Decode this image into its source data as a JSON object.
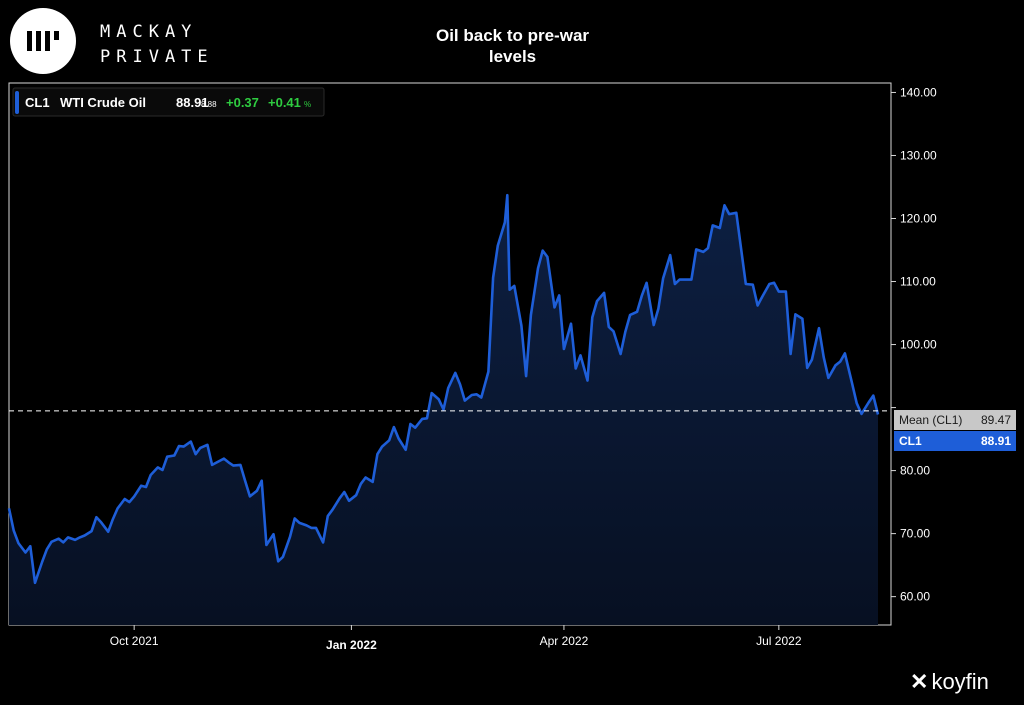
{
  "brand": {
    "line1": "MACKAY",
    "line2": "PRIVATE",
    "watermark": "koyfin"
  },
  "colors": {
    "background": "#000000",
    "line": "#1e5ed8",
    "fill": "#0b1a36",
    "positive": "#2ecc40",
    "mean_label_bg": "#c8c8c8"
  },
  "legend": {
    "ticker": "CL1",
    "name": "WTI Crude Oil",
    "price": "88.91",
    "sub_price": "8.88",
    "change": "+0.37",
    "change_pct": "+0.41",
    "pct_sign": "%"
  },
  "mean_label": {
    "name": "Mean (CL1)",
    "value": "89.47"
  },
  "last_label": {
    "name": "CL1",
    "value": "88.91"
  },
  "chart_data": {
    "type": "area",
    "title": "Oil back to pre-war levels",
    "title_lines": [
      "Oil back to pre-war",
      "levels"
    ],
    "xlabel": "",
    "ylabel": "",
    "ylim": [
      55.5,
      141.5
    ],
    "y_ticks": [
      60,
      70,
      80,
      90,
      100,
      110,
      120,
      130,
      140
    ],
    "y_tick_labels": [
      "60.00",
      "70.00",
      "80.00",
      "",
      "100.00",
      "110.00",
      "120.00",
      "130.00",
      "140.00"
    ],
    "x_range": [
      "2021-08-09",
      "2022-08-12"
    ],
    "x_ticks": [
      {
        "label": "Oct 2021",
        "date": "2021-10-01",
        "bold": false
      },
      {
        "label": "Jan 2022",
        "date": "2022-01-01",
        "bold": true
      },
      {
        "label": "Apr 2022",
        "date": "2022-04-01",
        "bold": false
      },
      {
        "label": "Jul 2022",
        "date": "2022-07-01",
        "bold": false
      }
    ],
    "grid": false,
    "legend_position": "top-left",
    "mean": 89.47,
    "series": [
      {
        "name": "WTI Crude Oil",
        "points": [
          [
            "2021-08-09",
            74.0
          ],
          [
            "2021-08-11",
            70.5
          ],
          [
            "2021-08-13",
            68.5
          ],
          [
            "2021-08-16",
            67.0
          ],
          [
            "2021-08-18",
            68.0
          ],
          [
            "2021-08-20",
            62.2
          ],
          [
            "2021-08-23",
            65.5
          ],
          [
            "2021-08-25",
            67.5
          ],
          [
            "2021-08-27",
            68.7
          ],
          [
            "2021-08-30",
            69.2
          ],
          [
            "2021-09-01",
            68.6
          ],
          [
            "2021-09-03",
            69.4
          ],
          [
            "2021-09-06",
            69.0
          ],
          [
            "2021-09-08",
            69.4
          ],
          [
            "2021-09-10",
            69.7
          ],
          [
            "2021-09-13",
            70.4
          ],
          [
            "2021-09-15",
            72.6
          ],
          [
            "2021-09-17",
            71.8
          ],
          [
            "2021-09-20",
            70.3
          ],
          [
            "2021-09-22",
            72.3
          ],
          [
            "2021-09-24",
            74.0
          ],
          [
            "2021-09-27",
            75.5
          ],
          [
            "2021-09-29",
            75.0
          ],
          [
            "2021-10-01",
            75.9
          ],
          [
            "2021-10-04",
            77.6
          ],
          [
            "2021-10-06",
            77.4
          ],
          [
            "2021-10-08",
            79.3
          ],
          [
            "2021-10-11",
            80.5
          ],
          [
            "2021-10-13",
            80.1
          ],
          [
            "2021-10-15",
            82.2
          ],
          [
            "2021-10-18",
            82.4
          ],
          [
            "2021-10-20",
            83.9
          ],
          [
            "2021-10-22",
            83.8
          ],
          [
            "2021-10-25",
            84.6
          ],
          [
            "2021-10-27",
            82.6
          ],
          [
            "2021-10-29",
            83.6
          ],
          [
            "2021-11-01",
            84.1
          ],
          [
            "2021-11-03",
            80.9
          ],
          [
            "2021-11-05",
            81.3
          ],
          [
            "2021-11-08",
            81.9
          ],
          [
            "2021-11-10",
            81.3
          ],
          [
            "2021-11-12",
            80.8
          ],
          [
            "2021-11-15",
            80.9
          ],
          [
            "2021-11-17",
            78.4
          ],
          [
            "2021-11-19",
            75.9
          ],
          [
            "2021-11-22",
            76.8
          ],
          [
            "2021-11-24",
            78.4
          ],
          [
            "2021-11-26",
            68.2
          ],
          [
            "2021-11-29",
            69.9
          ],
          [
            "2021-12-01",
            65.6
          ],
          [
            "2021-12-03",
            66.3
          ],
          [
            "2021-12-06",
            69.5
          ],
          [
            "2021-12-08",
            72.4
          ],
          [
            "2021-12-10",
            71.7
          ],
          [
            "2021-12-13",
            71.3
          ],
          [
            "2021-12-15",
            70.9
          ],
          [
            "2021-12-17",
            70.9
          ],
          [
            "2021-12-20",
            68.6
          ],
          [
            "2021-12-22",
            72.8
          ],
          [
            "2021-12-24",
            73.8
          ],
          [
            "2021-12-27",
            75.6
          ],
          [
            "2021-12-29",
            76.6
          ],
          [
            "2021-12-31",
            75.2
          ],
          [
            "2022-01-03",
            76.1
          ],
          [
            "2022-01-05",
            77.9
          ],
          [
            "2022-01-07",
            78.9
          ],
          [
            "2022-01-10",
            78.2
          ],
          [
            "2022-01-12",
            82.6
          ],
          [
            "2022-01-14",
            83.8
          ],
          [
            "2022-01-17",
            84.8
          ],
          [
            "2022-01-19",
            86.9
          ],
          [
            "2022-01-21",
            85.1
          ],
          [
            "2022-01-24",
            83.3
          ],
          [
            "2022-01-26",
            87.4
          ],
          [
            "2022-01-28",
            86.8
          ],
          [
            "2022-01-31",
            88.2
          ],
          [
            "2022-02-02",
            88.3
          ],
          [
            "2022-02-04",
            92.3
          ],
          [
            "2022-02-07",
            91.3
          ],
          [
            "2022-02-09",
            89.7
          ],
          [
            "2022-02-11",
            93.1
          ],
          [
            "2022-02-14",
            95.5
          ],
          [
            "2022-02-16",
            93.7
          ],
          [
            "2022-02-18",
            91.1
          ],
          [
            "2022-02-21",
            92.0
          ],
          [
            "2022-02-23",
            92.1
          ],
          [
            "2022-02-25",
            91.6
          ],
          [
            "2022-02-28",
            95.7
          ],
          [
            "2022-03-02",
            110.6
          ],
          [
            "2022-03-04",
            115.7
          ],
          [
            "2022-03-07",
            119.4
          ],
          [
            "2022-03-08",
            123.7
          ],
          [
            "2022-03-09",
            108.7
          ],
          [
            "2022-03-11",
            109.3
          ],
          [
            "2022-03-14",
            103.0
          ],
          [
            "2022-03-16",
            95.0
          ],
          [
            "2022-03-18",
            104.7
          ],
          [
            "2022-03-21",
            112.1
          ],
          [
            "2022-03-23",
            114.9
          ],
          [
            "2022-03-25",
            113.9
          ],
          [
            "2022-03-28",
            105.9
          ],
          [
            "2022-03-30",
            107.8
          ],
          [
            "2022-04-01",
            99.3
          ],
          [
            "2022-04-04",
            103.3
          ],
          [
            "2022-04-06",
            96.2
          ],
          [
            "2022-04-08",
            98.3
          ],
          [
            "2022-04-11",
            94.3
          ],
          [
            "2022-04-13",
            104.3
          ],
          [
            "2022-04-15",
            106.9
          ],
          [
            "2022-04-18",
            108.2
          ],
          [
            "2022-04-20",
            102.8
          ],
          [
            "2022-04-22",
            102.1
          ],
          [
            "2022-04-25",
            98.5
          ],
          [
            "2022-04-27",
            102.0
          ],
          [
            "2022-04-29",
            104.7
          ],
          [
            "2022-05-02",
            105.2
          ],
          [
            "2022-05-04",
            107.8
          ],
          [
            "2022-05-06",
            109.8
          ],
          [
            "2022-05-09",
            103.1
          ],
          [
            "2022-05-11",
            105.7
          ],
          [
            "2022-05-13",
            110.5
          ],
          [
            "2022-05-16",
            114.2
          ],
          [
            "2022-05-18",
            109.6
          ],
          [
            "2022-05-20",
            110.3
          ],
          [
            "2022-05-23",
            110.3
          ],
          [
            "2022-05-25",
            110.3
          ],
          [
            "2022-05-27",
            115.1
          ],
          [
            "2022-05-30",
            114.7
          ],
          [
            "2022-06-01",
            115.3
          ],
          [
            "2022-06-03",
            118.9
          ],
          [
            "2022-06-06",
            118.5
          ],
          [
            "2022-06-08",
            122.1
          ],
          [
            "2022-06-10",
            120.7
          ],
          [
            "2022-06-13",
            120.9
          ],
          [
            "2022-06-15",
            115.3
          ],
          [
            "2022-06-17",
            109.6
          ],
          [
            "2022-06-20",
            109.5
          ],
          [
            "2022-06-22",
            106.2
          ],
          [
            "2022-06-24",
            107.6
          ],
          [
            "2022-06-27",
            109.6
          ],
          [
            "2022-06-29",
            109.8
          ],
          [
            "2022-07-01",
            108.4
          ],
          [
            "2022-07-04",
            108.4
          ],
          [
            "2022-07-06",
            98.5
          ],
          [
            "2022-07-08",
            104.8
          ],
          [
            "2022-07-11",
            104.1
          ],
          [
            "2022-07-13",
            96.3
          ],
          [
            "2022-07-15",
            97.6
          ],
          [
            "2022-07-18",
            102.6
          ],
          [
            "2022-07-20",
            98.0
          ],
          [
            "2022-07-22",
            94.7
          ],
          [
            "2022-07-25",
            96.7
          ],
          [
            "2022-07-27",
            97.3
          ],
          [
            "2022-07-29",
            98.6
          ],
          [
            "2022-08-01",
            93.9
          ],
          [
            "2022-08-03",
            90.7
          ],
          [
            "2022-08-05",
            89.0
          ],
          [
            "2022-08-08",
            90.8
          ],
          [
            "2022-08-10",
            91.9
          ],
          [
            "2022-08-12",
            88.9
          ]
        ]
      }
    ]
  }
}
